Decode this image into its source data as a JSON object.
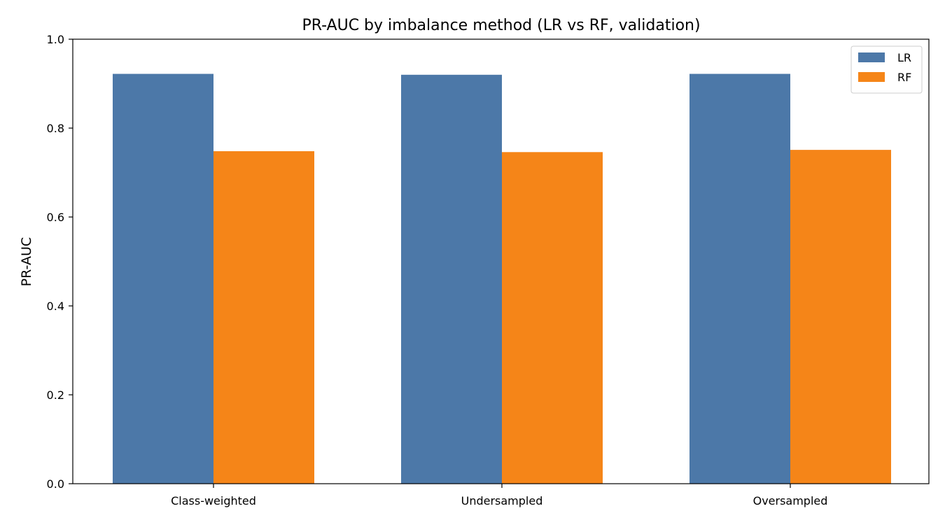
{
  "chart_data": {
    "type": "bar",
    "title": "PR-AUC by imbalance method (LR vs RF, validation)",
    "xlabel": "",
    "ylabel": "PR-AUC",
    "categories": [
      "Class-weighted",
      "Undersampled",
      "Oversampled"
    ],
    "series": [
      {
        "name": "LR",
        "color": "#4c78a8",
        "values": [
          0.922,
          0.92,
          0.922
        ]
      },
      {
        "name": "RF",
        "color": "#f58518",
        "values": [
          0.748,
          0.746,
          0.751
        ]
      }
    ],
    "ylim": [
      0,
      1.0
    ],
    "yticks": [
      "0.0",
      "0.2",
      "0.4",
      "0.6",
      "0.8",
      "1.0"
    ],
    "grid": false,
    "legend_position": "top-right"
  }
}
